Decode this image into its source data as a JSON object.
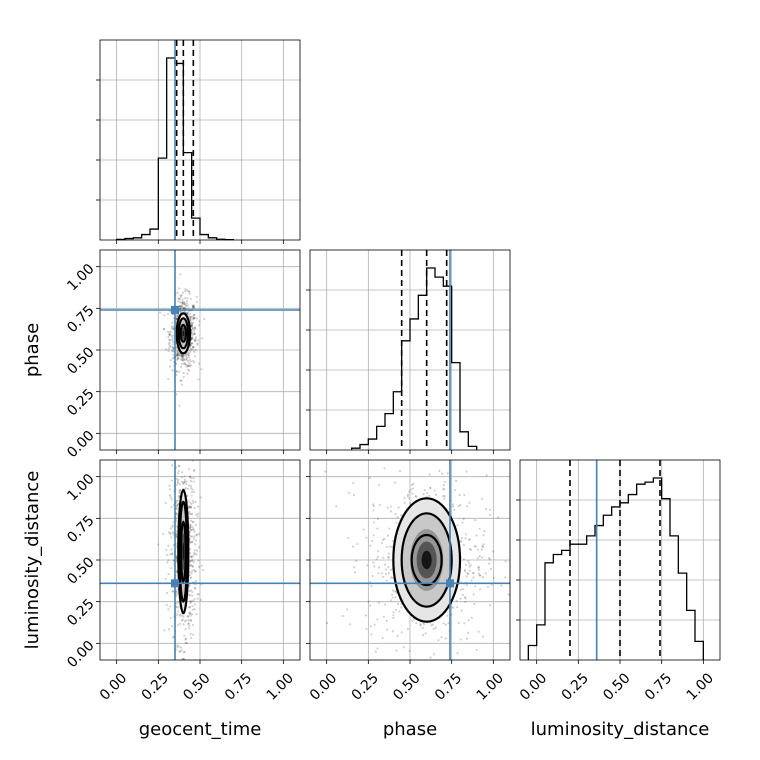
{
  "chart_data": {
    "type": "corner",
    "parameters": [
      "geocent_time",
      "phase",
      "luminosity_distance"
    ],
    "axis_ticks": [
      {
        "values": [
          0,
          0.25,
          0.5,
          0.75,
          1
        ],
        "labels": [
          "0.00",
          "0.25",
          "0.50",
          "0.75",
          "1.00"
        ]
      },
      {
        "values": [
          0,
          0.25,
          0.5,
          0.75,
          1
        ],
        "labels": [
          "0.00",
          "0.25",
          "0.50",
          "0.75",
          "1.00"
        ]
      },
      {
        "values": [
          0,
          0.25,
          0.5,
          0.75,
          1
        ],
        "labels": [
          "0.00",
          "0.25",
          "0.50",
          "0.75",
          "1.00"
        ]
      }
    ],
    "xlim": [
      [
        -0.1,
        1.1
      ],
      [
        -0.1,
        1.1
      ],
      [
        -0.1,
        1.1
      ]
    ],
    "truths": [
      0.35,
      0.74,
      0.36
    ],
    "truth_color": "#4682b4",
    "marginals": [
      {
        "parameter": "geocent_time",
        "bins": [
          0.0,
          0.05,
          0.1,
          0.15,
          0.2,
          0.25,
          0.3,
          0.35,
          0.4,
          0.45,
          0.5,
          0.55,
          0.6,
          0.65,
          0.7
        ],
        "counts": [
          0.003,
          0.008,
          0.012,
          0.03,
          0.06,
          0.45,
          1.0,
          0.97,
          0.48,
          0.12,
          0.03,
          0.012,
          0.004,
          0.002
        ],
        "quantiles": [
          0.36,
          0.4,
          0.46
        ],
        "grid": true
      },
      {
        "parameter": "phase",
        "bins": [
          0.15,
          0.2,
          0.25,
          0.3,
          0.35,
          0.4,
          0.45,
          0.5,
          0.55,
          0.6,
          0.65,
          0.7,
          0.75,
          0.8,
          0.85,
          0.9
        ],
        "counts": [
          0.01,
          0.03,
          0.06,
          0.13,
          0.2,
          0.32,
          0.6,
          0.72,
          0.85,
          1.0,
          0.95,
          0.9,
          0.48,
          0.1,
          0.02
        ],
        "quantiles": [
          0.45,
          0.6,
          0.72
        ],
        "grid": true
      },
      {
        "parameter": "luminosity_distance",
        "bins": [
          -0.05,
          0.0,
          0.05,
          0.1,
          0.15,
          0.2,
          0.25,
          0.3,
          0.35,
          0.4,
          0.45,
          0.5,
          0.55,
          0.6,
          0.65,
          0.7,
          0.75,
          0.8,
          0.85,
          0.9,
          0.95,
          1.0
        ],
        "counts": [
          0.07,
          0.17,
          0.47,
          0.51,
          0.53,
          0.56,
          0.56,
          0.6,
          0.65,
          0.7,
          0.74,
          0.76,
          0.8,
          0.85,
          0.86,
          0.88,
          0.78,
          0.6,
          0.42,
          0.24,
          0.09
        ],
        "quantiles": [
          0.2,
          0.5,
          0.74
        ],
        "grid": true
      }
    ],
    "joint": [
      {
        "x": "geocent_time",
        "y": "phase",
        "center": [
          0.4,
          0.6
        ],
        "spread": [
          0.04,
          0.12
        ],
        "contour_levels": [
          [
            0.04,
            0.12
          ],
          [
            0.028,
            0.09
          ],
          [
            0.016,
            0.05
          ]
        ]
      },
      {
        "x": "geocent_time",
        "y": "luminosity_distance",
        "center": [
          0.4,
          0.55
        ],
        "spread": [
          0.04,
          0.3
        ],
        "contour_levels": [
          [
            0.03,
            0.37
          ],
          [
            0.022,
            0.3
          ],
          [
            0.014,
            0.18
          ]
        ]
      },
      {
        "x": "phase",
        "y": "luminosity_distance",
        "center": [
          0.6,
          0.5
        ],
        "spread": [
          0.18,
          0.28
        ],
        "contour_levels": [
          [
            0.2,
            0.37
          ],
          [
            0.15,
            0.28
          ],
          [
            0.09,
            0.15
          ]
        ]
      }
    ],
    "grid": true
  }
}
